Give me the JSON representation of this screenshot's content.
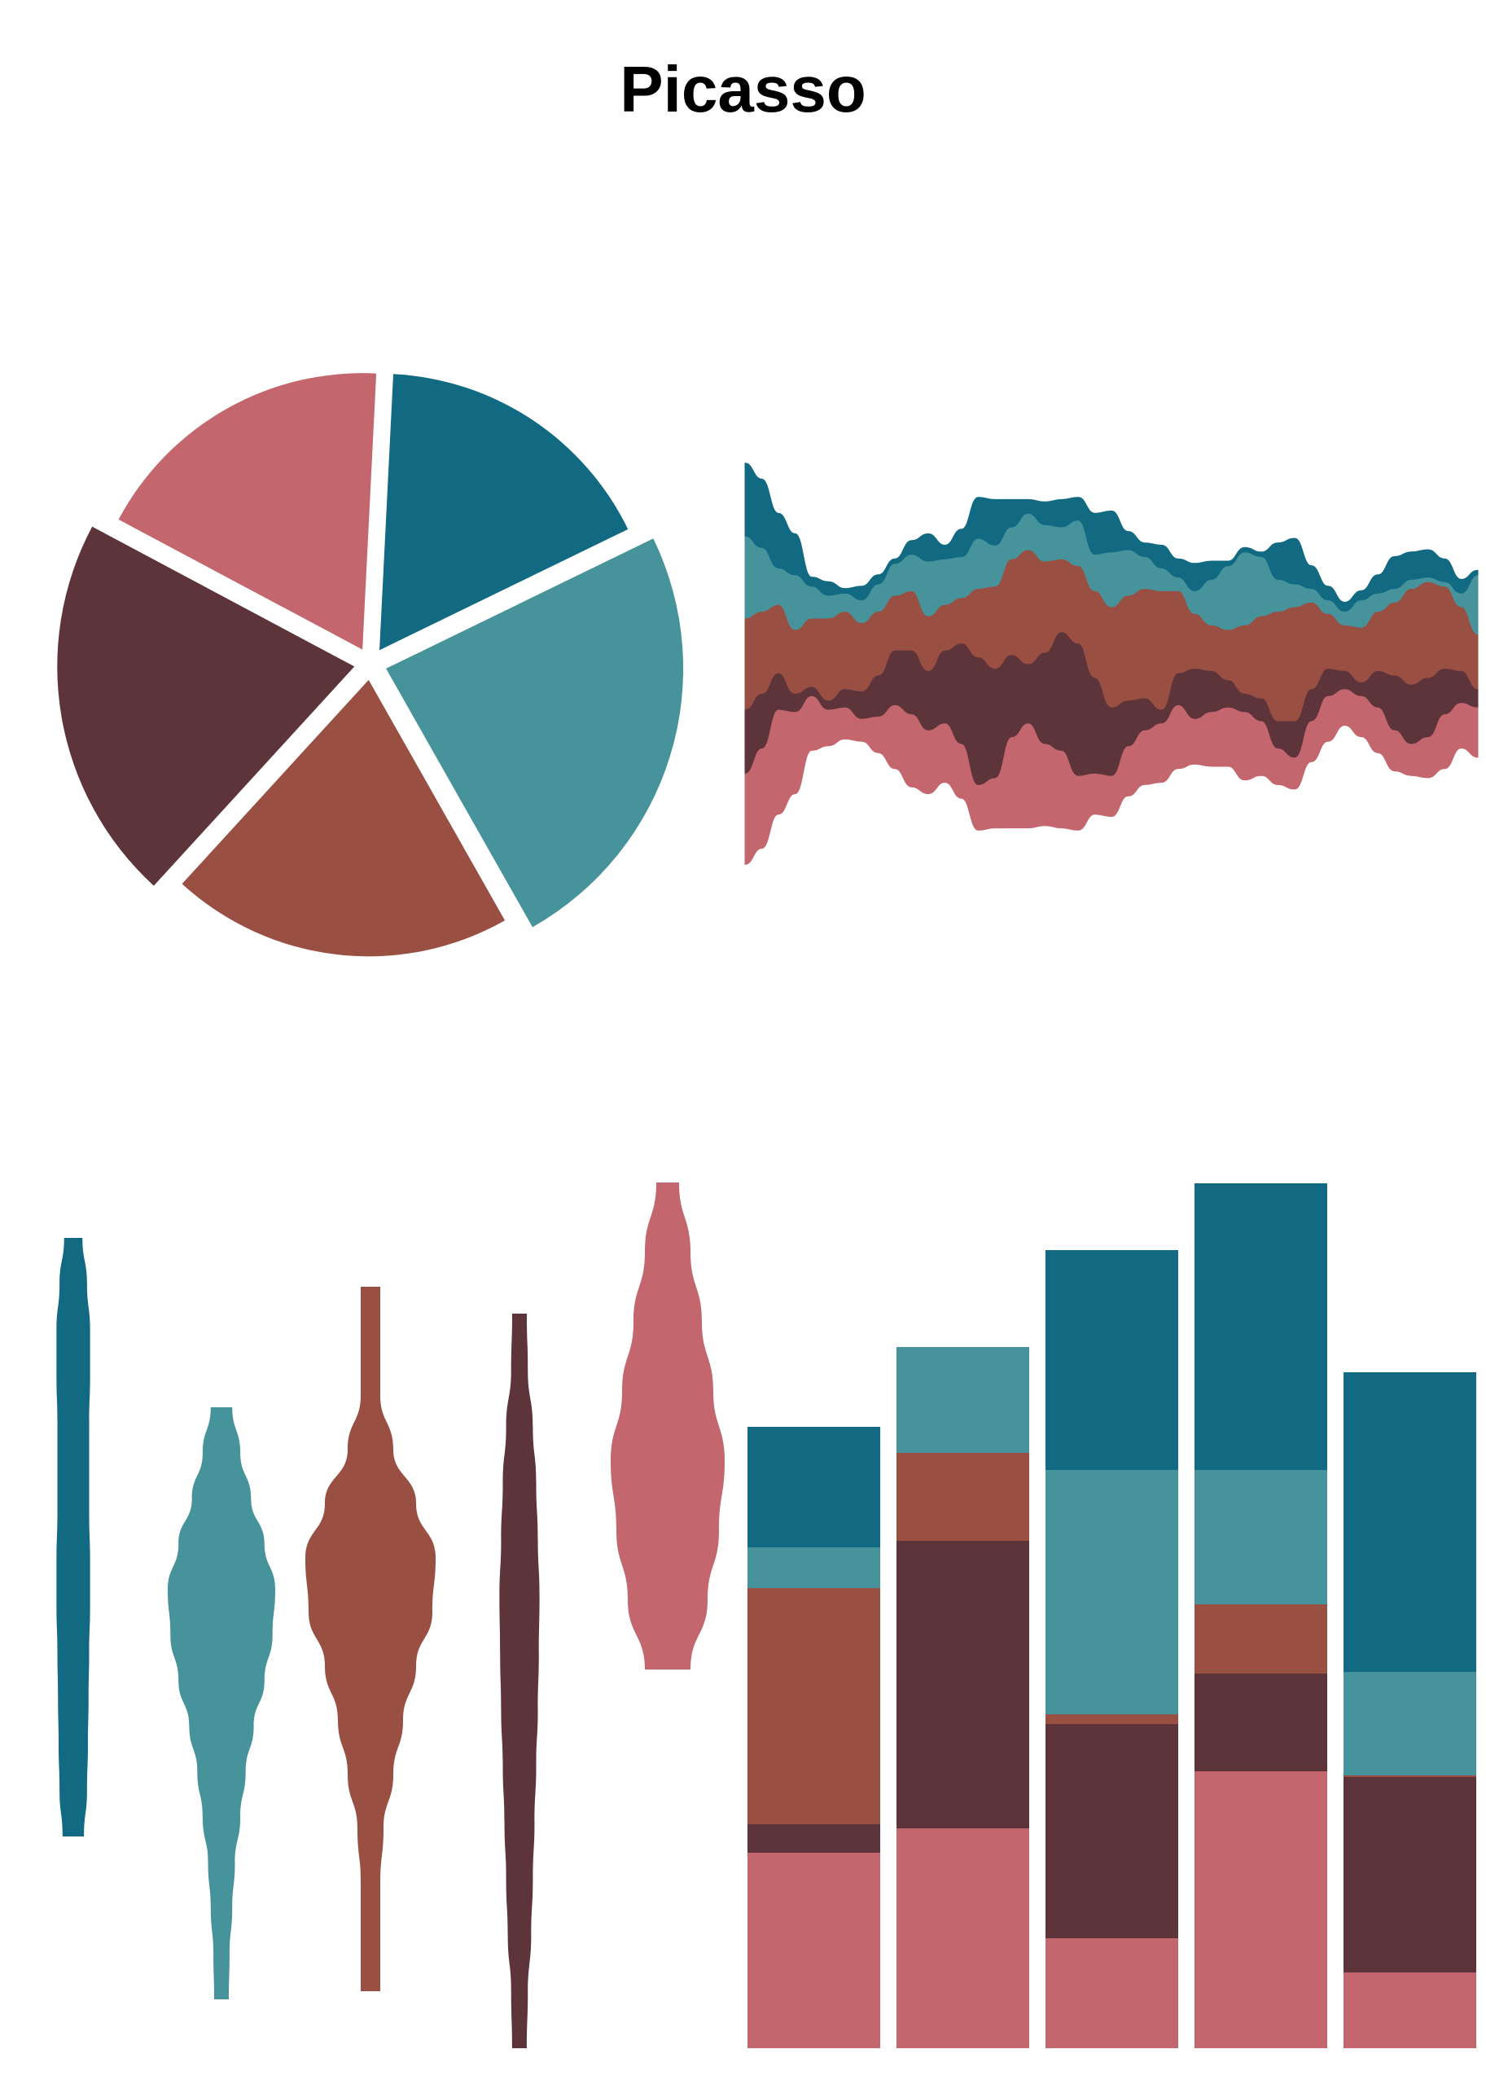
{
  "title": "Picasso",
  "palette": {
    "blue": "#116A82",
    "teal": "#47939C",
    "rust": "#994F42",
    "plum": "#5E343B",
    "rose": "#C4666D"
  },
  "chart_data": [
    {
      "type": "pie",
      "style": "exploded",
      "slices": [
        {
          "value": 17,
          "color": "#116A82"
        },
        {
          "value": 24,
          "color": "#47939C"
        },
        {
          "value": 20,
          "color": "#994F42"
        },
        {
          "value": 21,
          "color": "#5E343B"
        },
        {
          "value": 18,
          "color": "#C4666D"
        }
      ]
    },
    {
      "type": "area",
      "style": "streamgraph",
      "x": [
        0,
        1,
        2,
        3,
        4,
        5,
        6,
        7,
        8,
        9,
        10,
        11,
        12,
        13,
        14,
        15,
        16,
        17,
        18,
        19,
        20,
        21,
        22,
        23,
        24,
        25,
        26,
        27,
        28,
        29,
        30,
        31,
        32,
        33,
        34,
        35,
        36,
        37,
        38,
        39,
        40,
        41,
        42,
        43,
        44
      ],
      "series": [
        {
          "color": "#116A82",
          "values": [
            1.6,
            1.5,
            1.2,
            0.9,
            0.2,
            0.3,
            0.1,
            0.3,
            0.2,
            0.1,
            0.3,
            0.6,
            0.3,
            0.6,
            0.9,
            1.0,
            0.6,
            0.3,
            0.5,
            0.6,
            0.5,
            0.9,
            0.9,
            0.4,
            0.3,
            0.5,
            0.4,
            0.6,
            0.4,
            0.1,
            0.1,
            0.1,
            0.8,
            1.0,
            0.5,
            0.3,
            0.2,
            0.2,
            0.4,
            0.7,
            0.6,
            0.6,
            0.5,
            0.3,
            0.1
          ]
        },
        {
          "color": "#47939C",
          "values": [
            1.8,
            1.4,
            0.8,
            1.2,
            0.7,
            0.5,
            0.4,
            0.5,
            0.6,
            0.7,
            0.8,
            1.2,
            1.0,
            0.9,
            1.1,
            0.9,
            0.7,
            0.8,
            0.8,
            0.7,
            1.0,
            0.8,
            1.2,
            1.0,
            0.7,
            0.5,
            0.3,
            0.5,
            1.0,
            1.4,
            1.6,
            1.3,
            0.7,
            0.5,
            0.3,
            0.3,
            0.3,
            0.6,
            0.4,
            0.3,
            0.2,
            0.1,
            0.1,
            0.3,
            1.3
          ]
        },
        {
          "color": "#994F42",
          "values": [
            2.0,
            1.8,
            1.5,
            1.4,
            1.5,
            1.8,
            1.7,
            1.5,
            1.4,
            1.2,
            1.3,
            1.2,
            1.0,
            1.0,
            1.5,
            1.8,
            2.1,
            2.5,
            2.0,
            1.6,
            1.7,
            1.9,
            2.2,
            2.3,
            2.4,
            2.6,
            1.8,
            1.2,
            1.0,
            1.1,
            1.5,
            1.8,
            2.4,
            2.5,
            1.9,
            1.2,
            1.0,
            1.2,
            1.3,
            1.6,
            2.1,
            2.1,
            1.8,
            1.4,
            1.2
          ]
        },
        {
          "color": "#5E343B",
          "values": [
            1.4,
            1.2,
            0.8,
            0.4,
            0.2,
            0.2,
            0.4,
            0.6,
            0.9,
            1.2,
            1.4,
            1.3,
            1.6,
            2.2,
            2.8,
            2.4,
            1.8,
            1.3,
            2.0,
            2.6,
            2.9,
            2.1,
            1.5,
            1.0,
            0.7,
            0.3,
            0.7,
            1.1,
            0.9,
            0.6,
            0.4,
            0.5,
            0.6,
            0.8,
            0.7,
            0.6,
            0.4,
            0.3,
            0.8,
            1.2,
            1.3,
            1.3,
            1.0,
            0.7,
            0.4
          ]
        },
        {
          "color": "#C4666D",
          "values": [
            2.0,
            2.2,
            2.3,
            1.8,
            1.2,
            0.8,
            0.7,
            0.5,
            0.8,
            1.4,
            1.6,
            1.4,
            1.3,
            1.2,
            1.0,
            1.1,
            2.0,
            2.3,
            1.8,
            1.7,
            1.2,
            0.9,
            0.9,
            1.1,
            1.2,
            1.3,
            1.4,
            1.0,
            1.2,
            1.3,
            1.5,
            1.2,
            0.8,
            0.7,
            0.9,
            1.0,
            0.8,
            0.9,
            1.0,
            0.9,
            0.7,
            0.9,
            1.2,
            1.0,
            1.1
          ]
        }
      ]
    },
    {
      "type": "violin",
      "series": [
        {
          "color": "#116A82",
          "profile": [
            0.3,
            0.45,
            0.55,
            0.55,
            0.52,
            0.52,
            0.52,
            0.55,
            0.55,
            0.52,
            0.5,
            0.48,
            0.45,
            0.35
          ]
        },
        {
          "color": "#47939C",
          "profile": [
            0.2,
            0.35,
            0.55,
            0.8,
            1.0,
            0.95,
            0.8,
            0.6,
            0.45,
            0.35,
            0.25,
            0.2,
            0.15,
            0.1
          ]
        },
        {
          "color": "#994F42",
          "profile": [
            0.15,
            0.15,
            0.15,
            0.35,
            0.7,
            1.0,
            0.95,
            0.7,
            0.5,
            0.35,
            0.2,
            0.15,
            0.15,
            0.15
          ]
        },
        {
          "color": "#5E343B",
          "profile": [
            0.15,
            0.25,
            0.4,
            0.5,
            0.55,
            0.6,
            0.58,
            0.55,
            0.5,
            0.45,
            0.4,
            0.35,
            0.25,
            0.2
          ]
        },
        {
          "color": "#C4666D",
          "profile": [
            0.2,
            0.4,
            0.6,
            0.8,
            1.0,
            0.9,
            0.7,
            0.4
          ]
        }
      ]
    },
    {
      "type": "bar",
      "style": "stacked",
      "series_colors": [
        "#C4666D",
        "#5E343B",
        "#994F42",
        "#47939C",
        "#116A82"
      ],
      "stacks": [
        [
          240,
          35,
          290,
          50,
          148
        ],
        [
          270,
          353,
          0,
          0,
          0,
          0,
          0,
          108,
          0,
          130
        ],
        [
          135,
          263,
          12,
          300,
          270
        ],
        [
          340,
          120,
          85,
          165,
          352
        ],
        [
          93,
          240,
          2,
          127,
          368
        ]
      ]
    }
  ]
}
